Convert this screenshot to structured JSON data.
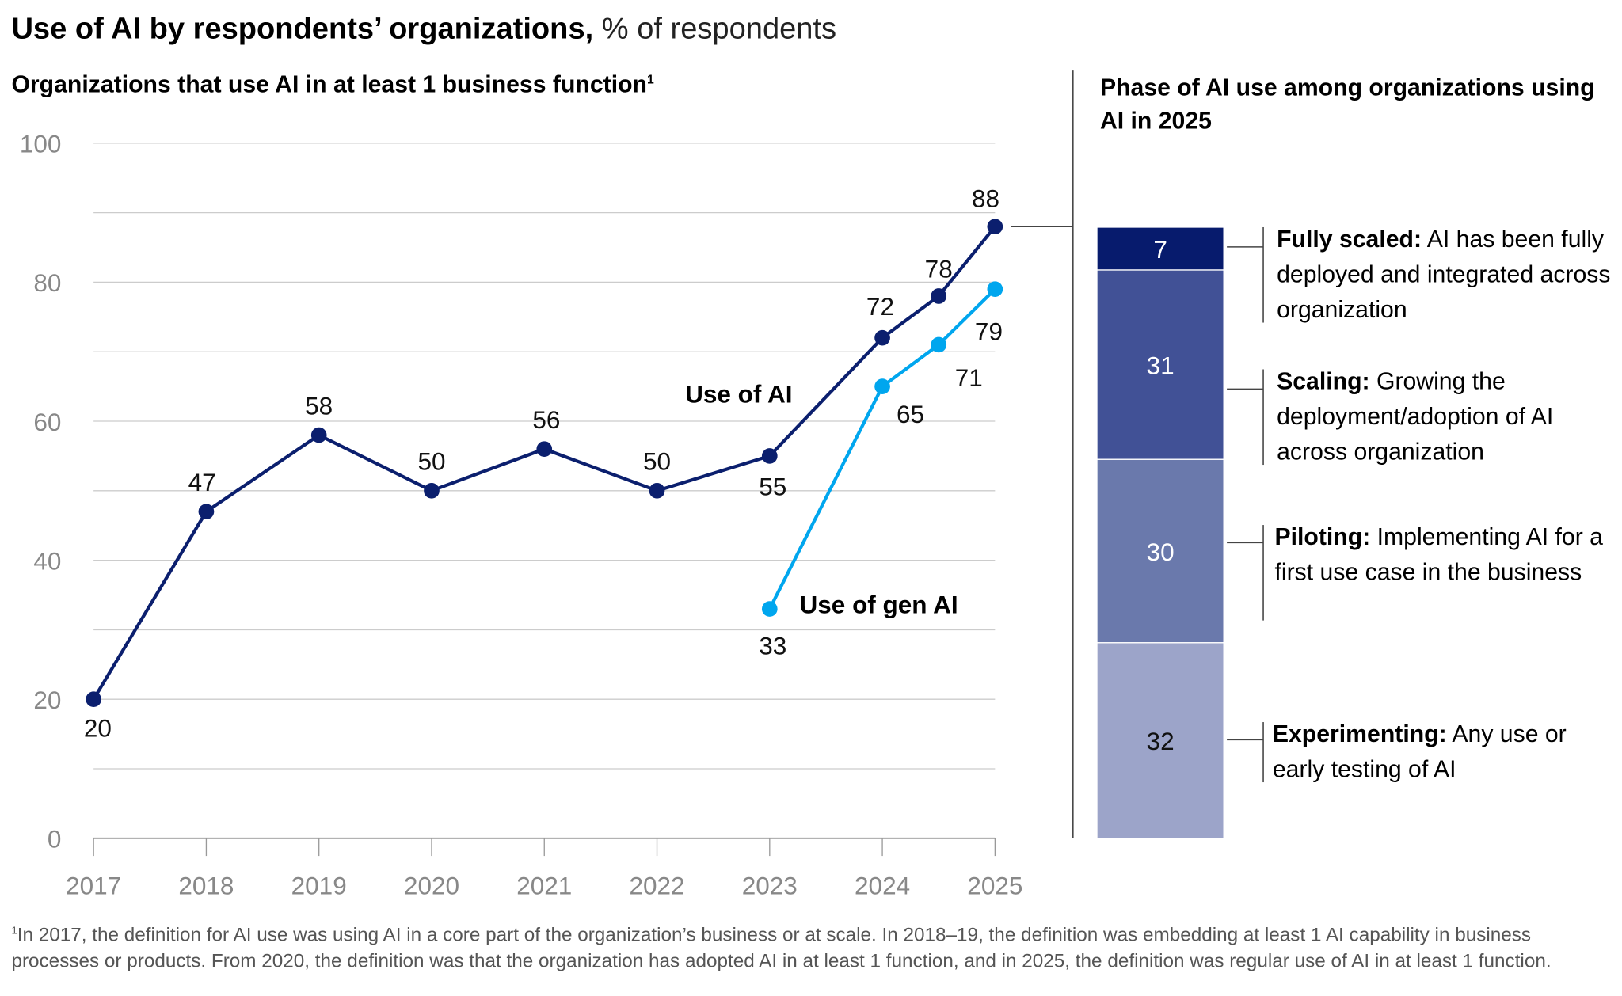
{
  "title": {
    "bold": "Use of AI by respondents’ organizations,",
    "light": "% of respondents"
  },
  "left_subtitle": {
    "text": "Organizations that use AI in at least 1 business function",
    "footnote_mark": "1"
  },
  "right_subtitle": "Phase of AI use among organizations using AI in 2025",
  "colors": {
    "use_of_ai": "#0b1f6e",
    "use_of_gen_ai": "#00a6ee",
    "grid": "#cccccc",
    "axis": "#999999",
    "fully_scaled": "#071b6d",
    "scaling": "#415196",
    "piloting": "#6a79ac",
    "experimenting": "#9ca4c9"
  },
  "chart_data": [
    {
      "type": "line",
      "title": "Organizations that use AI in at least 1 business function",
      "x_ticks": [
        "2017",
        "2018",
        "2019",
        "2020",
        "2021",
        "2022",
        "2023",
        "2024",
        "2025"
      ],
      "ylim": [
        0,
        100
      ],
      "y_ticks": [
        "0",
        "20",
        "40",
        "60",
        "80",
        "100"
      ],
      "grid": true,
      "series": [
        {
          "name": "Use of AI",
          "x": [
            2017,
            2018,
            2019,
            2020,
            2021,
            2022,
            2023,
            2024,
            2024.5,
            2025
          ],
          "values": [
            20,
            47,
            58,
            50,
            56,
            50,
            55,
            72,
            78,
            88
          ],
          "labels": [
            "20",
            "47",
            "58",
            "50",
            "56",
            "50",
            "55",
            "72",
            "78",
            "88"
          ]
        },
        {
          "name": "Use of gen AI",
          "x": [
            2023,
            2024,
            2024.5,
            2025
          ],
          "values": [
            33,
            65,
            71,
            79
          ],
          "labels": [
            "33",
            "65",
            "71",
            "79"
          ]
        }
      ]
    },
    {
      "type": "bar",
      "stacked": true,
      "title": "Phase of AI use among organizations using AI in 2025",
      "segments": [
        {
          "key": "fully_scaled",
          "value": 7,
          "label": "7",
          "heading": "Fully scaled:",
          "description": "AI has been fully deployed and integrat­ed across organization"
        },
        {
          "key": "scaling",
          "value": 31,
          "label": "31",
          "heading": "Scaling:",
          "description": "Growing the deployment/adoption of AI across organization"
        },
        {
          "key": "piloting",
          "value": 30,
          "label": "30",
          "heading": "Piloting:",
          "description": "Implementing AI for a first use case in the business"
        },
        {
          "key": "experimenting",
          "value": 32,
          "label": "32",
          "heading": "Experimenting:",
          "description": "Any use or early testing of AI"
        }
      ]
    }
  ],
  "footnote": {
    "mark": "1",
    "text": "In 2017, the definition for AI use was using AI in a core part of the organization’s business or at scale. In 2018–19, the definition was embedding at least 1 AI capability in business processes or products. From 2020, the definition was that the organization has adopted AI in at least 1 function, and in 2025, the defini­tion was regular use of AI in at least 1 function."
  }
}
